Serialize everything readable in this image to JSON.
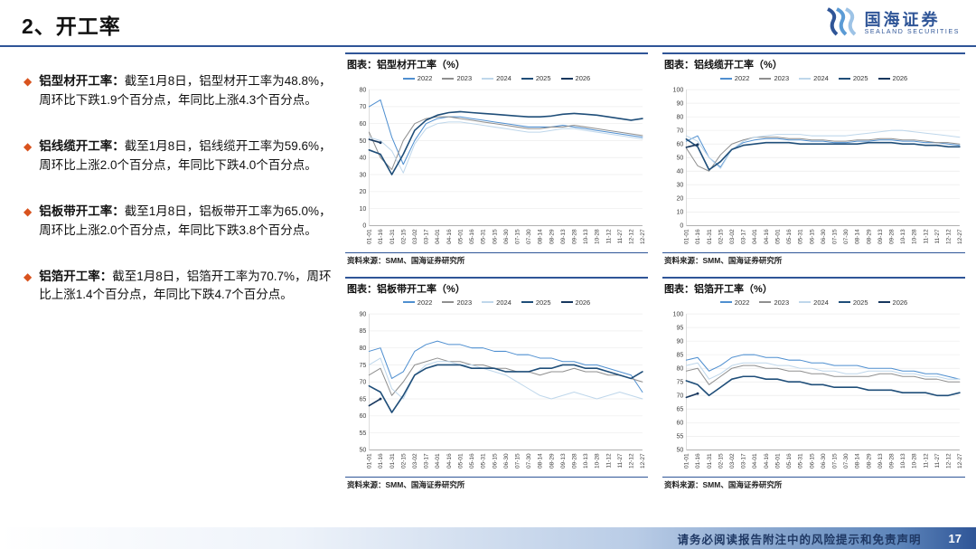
{
  "header": {
    "title": "2、开工率",
    "brand": {
      "name": "国海证券",
      "subtitle": "SEALAND SECURITIES"
    }
  },
  "bullet_glyph": "◆",
  "bullets": [
    {
      "term": "铝型材开工率：",
      "text": "截至1月8日，铝型材开工率为48.8%，周环比下跌1.9个百分点，年同比上涨4.3个百分点。"
    },
    {
      "term": "铝线缆开工率：",
      "text": "截至1月8日，铝线缆开工率为59.6%，周环比上涨2.0个百分点，年同比下跌4.0个百分点。"
    },
    {
      "term": "铝板带开工率：",
      "text": "截至1月8日，铝板带开工率为65.0%，周环比上涨2.0个百分点，年同比下跌3.8个百分点。"
    },
    {
      "term": "铝箔开工率：",
      "text": "截至1月8日，铝箔开工率为70.7%，周环比上涨1.4个百分点，年同比下跌4.7个百分点。"
    }
  ],
  "source_label": "资料来源：SMM、国海证券研究所",
  "footer": {
    "disclaimer": "请务必阅读报告附注中的风险提示和免责声明",
    "page": "17"
  },
  "colors": {
    "accent_blue": "#2F5597",
    "bullet_orange": "#D9531E"
  },
  "chart_data": [
    {
      "type": "line",
      "title": "图表：铝型材开工率（%）",
      "ylim": [
        0,
        80
      ],
      "ytick_step": 10,
      "x_labels": [
        "01-01",
        "01-16",
        "01-31",
        "02-15",
        "03-02",
        "03-17",
        "04-01",
        "04-16",
        "05-01",
        "05-16",
        "05-31",
        "06-15",
        "06-30",
        "07-15",
        "07-30",
        "08-14",
        "08-29",
        "09-13",
        "09-28",
        "10-13",
        "10-28",
        "11-12",
        "11-27",
        "12-12",
        "12-27"
      ],
      "series": [
        {
          "name": "2022",
          "color": "#4F8FD0",
          "width": 1.0,
          "values": [
            70,
            74,
            52,
            36,
            50,
            60,
            63,
            64,
            64,
            63,
            62,
            61,
            60,
            59,
            58,
            58,
            58,
            59,
            58,
            57,
            56,
            55,
            54,
            53,
            52
          ]
        },
        {
          "name": "2023",
          "color": "#8F8F8F",
          "width": 1.0,
          "values": [
            55,
            40,
            33,
            50,
            60,
            63,
            64,
            64,
            63,
            62,
            61,
            60,
            59,
            58,
            57,
            57,
            58,
            58,
            59,
            58,
            57,
            56,
            55,
            54,
            53
          ]
        },
        {
          "name": "2024",
          "color": "#BFD7EB",
          "width": 1.0,
          "values": [
            52,
            50,
            44,
            31,
            48,
            57,
            60,
            61,
            61,
            60,
            59,
            58,
            57,
            56,
            55,
            55,
            56,
            57,
            57,
            56,
            55,
            54,
            53,
            52,
            51
          ]
        },
        {
          "name": "2025",
          "color": "#1F4E79",
          "width": 1.6,
          "values": [
            44.5,
            42,
            30,
            42,
            56,
            62,
            65,
            66.5,
            67,
            66.5,
            66,
            65.5,
            65,
            64.5,
            64,
            64,
            64.5,
            65.5,
            66,
            65.5,
            65,
            64,
            63,
            62,
            63
          ]
        },
        {
          "name": "2026",
          "color": "#17375E",
          "width": 1.6,
          "values": [
            50.7,
            48.8
          ]
        }
      ]
    },
    {
      "type": "line",
      "title": "图表：铝线缆开工率（%）",
      "ylim": [
        0,
        100
      ],
      "ytick_step": 10,
      "x_labels": [
        "01-01",
        "01-16",
        "01-31",
        "02-15",
        "03-02",
        "03-17",
        "04-01",
        "04-16",
        "05-01",
        "05-16",
        "05-31",
        "06-15",
        "06-30",
        "07-15",
        "07-30",
        "08-14",
        "08-29",
        "09-13",
        "09-28",
        "10-13",
        "10-28",
        "11-12",
        "11-27",
        "12-12",
        "12-27"
      ],
      "series": [
        {
          "name": "2022",
          "color": "#4F8FD0",
          "width": 1.0,
          "values": [
            62,
            66,
            50,
            43,
            56,
            61,
            63,
            64,
            64,
            63,
            63,
            62,
            62,
            61,
            61,
            62,
            62,
            63,
            63,
            62,
            62,
            61,
            61,
            60,
            59
          ]
        },
        {
          "name": "2023",
          "color": "#8F8F8F",
          "width": 1.0,
          "values": [
            57,
            44,
            40,
            52,
            60,
            63,
            65,
            65,
            65,
            64,
            64,
            63,
            63,
            62,
            62,
            63,
            63,
            64,
            64,
            63,
            63,
            62,
            61,
            61,
            60
          ]
        },
        {
          "name": "2024",
          "color": "#BFD7EB",
          "width": 1.0,
          "values": [
            66,
            62,
            50,
            42,
            56,
            62,
            65,
            66,
            67,
            67,
            67,
            66,
            66,
            66,
            66,
            67,
            68,
            69,
            70,
            70,
            69,
            68,
            67,
            66,
            65
          ]
        },
        {
          "name": "2025",
          "color": "#1F4E79",
          "width": 1.6,
          "values": [
            63.6,
            58,
            41,
            47,
            56,
            59,
            60,
            61,
            61,
            61,
            60,
            60,
            60,
            60,
            60,
            60,
            61,
            61,
            61,
            60,
            60,
            59,
            59,
            58,
            58
          ]
        },
        {
          "name": "2026",
          "color": "#17375E",
          "width": 1.6,
          "values": [
            57.6,
            59.6
          ]
        }
      ]
    },
    {
      "type": "line",
      "title": "图表：铝板带开工率（%）",
      "ylim": [
        50,
        90
      ],
      "ytick_step": 5,
      "x_labels": [
        "01-01",
        "01-16",
        "01-31",
        "02-15",
        "03-02",
        "03-17",
        "04-01",
        "04-16",
        "05-01",
        "05-16",
        "05-31",
        "06-15",
        "06-30",
        "07-15",
        "07-30",
        "08-14",
        "08-29",
        "09-13",
        "09-28",
        "10-13",
        "10-28",
        "11-12",
        "11-27",
        "12-12",
        "12-27"
      ],
      "series": [
        {
          "name": "2022",
          "color": "#4F8FD0",
          "width": 1.0,
          "values": [
            79,
            80,
            71,
            73,
            79,
            81,
            82,
            81,
            81,
            80,
            80,
            79,
            79,
            78,
            78,
            77,
            77,
            76,
            76,
            75,
            75,
            74,
            73,
            72,
            67
          ]
        },
        {
          "name": "2023",
          "color": "#8F8F8F",
          "width": 1.0,
          "values": [
            72,
            74,
            66,
            70,
            75,
            76,
            77,
            76,
            76,
            75,
            75,
            74,
            74,
            73,
            73,
            72,
            73,
            73,
            74,
            73,
            73,
            72,
            72,
            71,
            70
          ]
        },
        {
          "name": "2024",
          "color": "#BFD7EB",
          "width": 1.0,
          "values": [
            75,
            77,
            68,
            65,
            72,
            75,
            76,
            76,
            75,
            75,
            74,
            73,
            72,
            70,
            68,
            66,
            65,
            66,
            67,
            66,
            65,
            66,
            67,
            66,
            65
          ]
        },
        {
          "name": "2025",
          "color": "#1F4E79",
          "width": 1.6,
          "values": [
            68.8,
            67,
            61,
            66,
            72,
            74,
            75,
            75,
            75,
            74,
            74,
            74,
            73,
            73,
            73,
            74,
            74,
            75,
            75,
            74,
            74,
            73,
            72,
            71,
            73
          ]
        },
        {
          "name": "2026",
          "color": "#17375E",
          "width": 1.6,
          "values": [
            63.0,
            65.0
          ]
        }
      ]
    },
    {
      "type": "line",
      "title": "图表：铝箔开工率（%）",
      "ylim": [
        50,
        100
      ],
      "ytick_step": 5,
      "x_labels": [
        "01-01",
        "01-16",
        "01-31",
        "02-15",
        "03-02",
        "03-17",
        "04-01",
        "04-16",
        "05-01",
        "05-16",
        "05-31",
        "06-15",
        "06-30",
        "07-15",
        "07-30",
        "08-14",
        "08-29",
        "09-13",
        "09-28",
        "10-13",
        "10-28",
        "11-12",
        "11-27",
        "12-12",
        "12-27"
      ],
      "series": [
        {
          "name": "2022",
          "color": "#4F8FD0",
          "width": 1.0,
          "values": [
            83,
            84,
            79,
            81,
            84,
            85,
            85,
            84,
            84,
            83,
            83,
            82,
            82,
            81,
            81,
            81,
            80,
            80,
            80,
            79,
            79,
            78,
            78,
            77,
            76
          ]
        },
        {
          "name": "2023",
          "color": "#8F8F8F",
          "width": 1.0,
          "values": [
            79,
            80,
            74,
            77,
            80,
            81,
            81,
            80,
            80,
            79,
            79,
            78,
            78,
            77,
            77,
            77,
            77,
            78,
            78,
            77,
            77,
            76,
            76,
            75,
            75
          ]
        },
        {
          "name": "2024",
          "color": "#BFD7EB",
          "width": 1.0,
          "values": [
            81,
            82,
            76,
            78,
            81,
            82,
            82,
            82,
            81,
            81,
            80,
            80,
            79,
            79,
            78,
            78,
            79,
            79,
            79,
            78,
            78,
            77,
            77,
            76,
            76
          ]
        },
        {
          "name": "2025",
          "color": "#1F4E79",
          "width": 1.6,
          "values": [
            75.4,
            74,
            70,
            73,
            76,
            77,
            77,
            76,
            76,
            75,
            75,
            74,
            74,
            73,
            73,
            73,
            72,
            72,
            72,
            71,
            71,
            71,
            70,
            70,
            71
          ]
        },
        {
          "name": "2026",
          "color": "#17375E",
          "width": 1.6,
          "values": [
            69.3,
            70.7
          ]
        }
      ]
    }
  ]
}
